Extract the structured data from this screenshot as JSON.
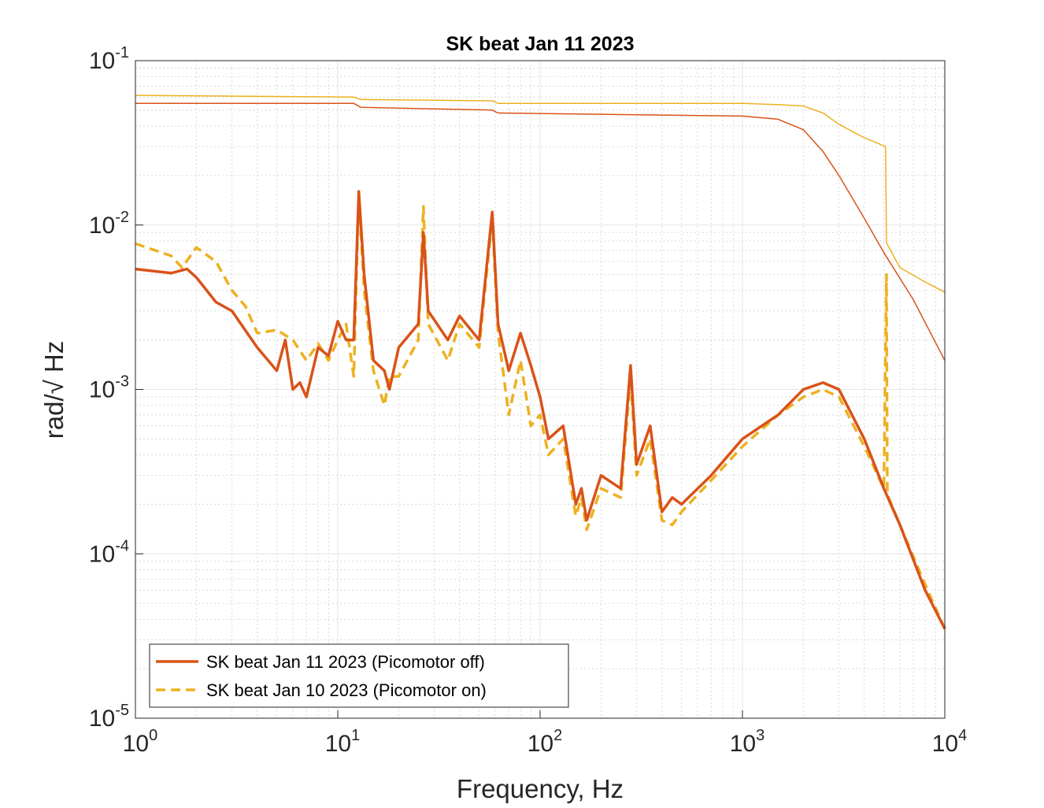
{
  "chart_data": {
    "type": "line",
    "title": "SK beat Jan 11 2023",
    "xlabel": "Frequency, Hz",
    "ylabel": "rad/√ Hz",
    "xscale": "log",
    "yscale": "log",
    "xlim": [
      1,
      10000
    ],
    "ylim": [
      1e-05,
      0.1
    ],
    "xticks": [
      {
        "value": 1,
        "label": "10",
        "exponent": "0"
      },
      {
        "value": 10,
        "label": "10",
        "exponent": "1"
      },
      {
        "value": 100,
        "label": "10",
        "exponent": "2"
      },
      {
        "value": 1000,
        "label": "10",
        "exponent": "3"
      },
      {
        "value": 10000,
        "label": "10",
        "exponent": "4"
      }
    ],
    "yticks": [
      {
        "value": 1e-05,
        "label": "10",
        "exponent": "-5"
      },
      {
        "value": 0.0001,
        "label": "10",
        "exponent": "-4"
      },
      {
        "value": 0.001,
        "label": "10",
        "exponent": "-3"
      },
      {
        "value": 0.01,
        "label": "10",
        "exponent": "-2"
      },
      {
        "value": 0.1,
        "label": "10",
        "exponent": "-1"
      }
    ],
    "grid": true,
    "minor_grid": true,
    "legend": "lower left",
    "series": [
      {
        "name": "SK beat Jan 11 2023 (Picomotor off)",
        "color": "#d95319",
        "dash": false,
        "width": 3.5,
        "x": [
          1,
          1.5,
          1.8,
          2,
          2.5,
          3,
          4,
          5,
          5.5,
          6,
          6.5,
          7,
          8,
          9,
          10,
          11,
          12,
          12.7,
          13.5,
          15,
          17,
          18,
          20,
          25,
          26.5,
          28,
          35,
          40,
          50,
          58,
          62,
          70,
          80,
          90,
          100,
          110,
          130,
          150,
          160,
          170,
          200,
          250,
          280,
          300,
          350,
          400,
          450,
          500,
          700,
          1000,
          1500,
          2000,
          2500,
          3000,
          4000,
          5000,
          6000,
          8000,
          10000
        ],
        "values": [
          0.0054,
          0.0051,
          0.0054,
          0.0048,
          0.0034,
          0.003,
          0.0018,
          0.0013,
          0.002,
          0.001,
          0.0011,
          0.0009,
          0.0018,
          0.0016,
          0.0026,
          0.002,
          0.002,
          0.016,
          0.005,
          0.0015,
          0.0013,
          0.001,
          0.0018,
          0.0025,
          0.009,
          0.003,
          0.002,
          0.0028,
          0.002,
          0.012,
          0.0025,
          0.0013,
          0.0022,
          0.0014,
          0.0009,
          0.0005,
          0.0006,
          0.0002,
          0.00025,
          0.00016,
          0.0003,
          0.00025,
          0.0014,
          0.00035,
          0.0006,
          0.00018,
          0.00022,
          0.0002,
          0.0003,
          0.0005,
          0.0007,
          0.001,
          0.0011,
          0.001,
          0.0005,
          0.00025,
          0.00015,
          6e-05,
          3.5e-05
        ]
      },
      {
        "name": "SK beat Jan 10 2023 (Picomotor on)",
        "color": "#edb120",
        "dash": true,
        "width": 3.5,
        "x": [
          1,
          1.5,
          1.7,
          2,
          2.5,
          3,
          3.5,
          4,
          5,
          6,
          7,
          8,
          9,
          10,
          11,
          12,
          12.7,
          13.5,
          15,
          17,
          18,
          20,
          25,
          26.5,
          28,
          35,
          40,
          50,
          58,
          62,
          70,
          80,
          90,
          100,
          110,
          130,
          150,
          160,
          170,
          200,
          250,
          280,
          300,
          350,
          400,
          450,
          500,
          700,
          1000,
          1500,
          2000,
          2500,
          3000,
          4000,
          5000,
          5150,
          5200,
          6000,
          8000,
          10000
        ],
        "values": [
          0.0077,
          0.0065,
          0.0055,
          0.0073,
          0.006,
          0.004,
          0.0032,
          0.0022,
          0.0023,
          0.002,
          0.0015,
          0.0019,
          0.0015,
          0.002,
          0.0025,
          0.0012,
          0.015,
          0.004,
          0.0013,
          0.0008,
          0.0012,
          0.0012,
          0.002,
          0.013,
          0.0025,
          0.0015,
          0.0025,
          0.0018,
          0.011,
          0.0022,
          0.0007,
          0.0015,
          0.0006,
          0.0007,
          0.0004,
          0.0005,
          0.00017,
          0.00022,
          0.00014,
          0.00025,
          0.00022,
          0.0012,
          0.0003,
          0.0005,
          0.00016,
          0.00015,
          0.00018,
          0.00028,
          0.00045,
          0.0007,
          0.0009,
          0.001,
          0.0009,
          0.00045,
          0.00025,
          0.005,
          0.00023,
          0.00015,
          6.5e-05,
          3.5e-05
        ]
      },
      {
        "color": "#edb120",
        "dash": false,
        "width": 1.5,
        "x": [
          1,
          12,
          13,
          58,
          62,
          1000,
          1500,
          2000,
          2500,
          3000,
          3500,
          4000,
          5100,
          5150,
          6000,
          8000,
          10000
        ],
        "values": [
          0.0615,
          0.06,
          0.058,
          0.057,
          0.055,
          0.055,
          0.054,
          0.053,
          0.048,
          0.041,
          0.037,
          0.034,
          0.03,
          0.0078,
          0.0055,
          0.0045,
          0.0039
        ]
      },
      {
        "color": "#d95319",
        "dash": false,
        "width": 1.5,
        "x": [
          1,
          12,
          13,
          58,
          62,
          1000,
          1500,
          2000,
          2500,
          3000,
          4000,
          5000,
          7000,
          10000
        ],
        "values": [
          0.055,
          0.055,
          0.052,
          0.05,
          0.048,
          0.046,
          0.044,
          0.038,
          0.028,
          0.02,
          0.011,
          0.0068,
          0.0035,
          0.0015
        ]
      }
    ]
  }
}
